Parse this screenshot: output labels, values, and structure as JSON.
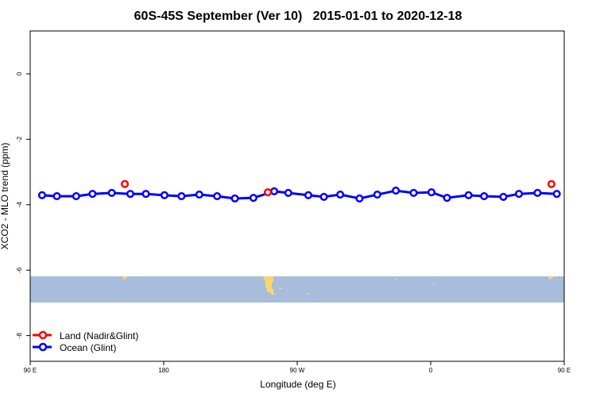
{
  "chart_data": {
    "type": "line",
    "title": "60S-45S September (Ver 10)   2015-01-01 to 2020-12-18",
    "xlabel": "Longitude (deg E)",
    "ylabel": "XCO2 - MLO trend (ppm)",
    "xlim_unwrapped": [
      90,
      450
    ],
    "ylim": [
      -8.8,
      1.3
    ],
    "x_ticks": [
      {
        "value": 90,
        "label": "90 E"
      },
      {
        "value": 180,
        "label": "180"
      },
      {
        "value": 270,
        "label": "90 W"
      },
      {
        "value": 360,
        "label": "0"
      },
      {
        "value": 450,
        "label": "90 E"
      },
      {
        "value": 540,
        "label": "180"
      }
    ],
    "y_ticks": [
      {
        "value": 0,
        "label": "0"
      },
      {
        "value": -2,
        "label": "-2"
      },
      {
        "value": -4,
        "label": "-4"
      },
      {
        "value": -6,
        "label": "-6"
      },
      {
        "value": -8,
        "label": "-8"
      }
    ],
    "legend_position": "bottom-left",
    "series": [
      {
        "name": "Land (Nadir&Glint)",
        "color": "#ff0000",
        "line": false,
        "x": [
          153.8,
          250.2,
          441.4
        ],
        "y": [
          -3.37,
          -3.62,
          -3.37
        ]
      },
      {
        "name": "Ocean (Glint)",
        "color": "#0000ff",
        "line": true,
        "x": [
          98,
          108,
          121,
          132,
          145,
          157.5,
          168,
          180.5,
          192,
          204,
          216,
          228,
          240.5,
          254.5,
          264,
          277.5,
          288,
          299,
          312,
          324,
          336.5,
          348.5,
          360.5,
          371,
          385.5,
          396,
          409,
          419.5,
          432,
          445
        ],
        "y": [
          -3.71,
          -3.74,
          -3.74,
          -3.67,
          -3.64,
          -3.67,
          -3.67,
          -3.71,
          -3.74,
          -3.69,
          -3.74,
          -3.81,
          -3.79,
          -3.59,
          -3.64,
          -3.71,
          -3.76,
          -3.69,
          -3.81,
          -3.69,
          -3.57,
          -3.64,
          -3.62,
          -3.79,
          -3.71,
          -3.74,
          -3.76,
          -3.67,
          -3.64,
          -3.67
        ]
      }
    ],
    "map_strip": {
      "ocean_color": "#a7bddb",
      "land_color": "#fcd56e",
      "y_range": [
        -7.0,
        -6.2
      ]
    }
  }
}
